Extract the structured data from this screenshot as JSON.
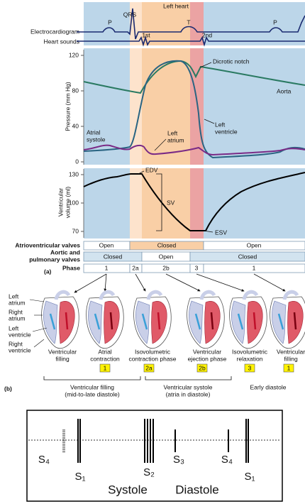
{
  "header": {
    "title": "Left heart"
  },
  "traces": {
    "ecg_label": "Electrocardiogram",
    "sounds_label": "Heart sounds",
    "ecg_waves": [
      "P",
      "QRS",
      "T",
      "P"
    ],
    "sounds": [
      "1st",
      "2nd"
    ]
  },
  "pressure": {
    "axis_label": "Pressure (mm Hg)",
    "ticks": [
      0,
      40,
      80,
      120
    ],
    "labels": {
      "dicrotic_notch": "Dicrotic notch",
      "aorta": "Aorta",
      "left_ventricle": [
        "Left",
        "ventricle"
      ],
      "atrial_systole": [
        "Atrial",
        "systole"
      ],
      "left_atrium": [
        "Left",
        "atrium"
      ]
    }
  },
  "volume": {
    "axis_label": [
      "Ventricular",
      "volume (ml)"
    ],
    "ticks": [
      70,
      100,
      130
    ],
    "labels": [
      "EDV",
      "SV",
      "ESV"
    ]
  },
  "table": {
    "rows": [
      {
        "label": [
          "Atrioventricular valves"
        ],
        "cells": [
          "Open",
          "Closed",
          "Open"
        ]
      },
      {
        "label": [
          "Aortic and",
          "pulmonary valves"
        ],
        "cells": [
          "Closed",
          "Open",
          "Closed"
        ]
      },
      {
        "label": [
          "Phase"
        ],
        "cells": [
          "1",
          "2a",
          "2b",
          "3",
          "1"
        ]
      }
    ],
    "panel_label": "(a)"
  },
  "hearts": {
    "parts": [
      [
        "Left",
        "atrium"
      ],
      [
        "Right",
        "atrium"
      ],
      [
        "Left",
        "ventricle"
      ],
      [
        "Right",
        "ventricle"
      ]
    ],
    "captions": [
      [
        "Ventricular",
        "filling"
      ],
      [
        "Atrial",
        "contraction"
      ],
      [
        "Isovolumetric",
        "contraction phase"
      ],
      [
        "Ventricular",
        "ejection phase"
      ],
      [
        "Isovolumetric",
        "relaxation"
      ],
      [
        "Ventricular",
        "filling"
      ]
    ],
    "phases": [
      "1",
      "2a",
      "2b",
      "3",
      "1"
    ],
    "groups": [
      [
        "Ventricular filling",
        "(mid-to-late diastole)"
      ],
      [
        "Ventricular systole",
        "(atria in diastole)"
      ],
      [
        "Early diastole"
      ]
    ],
    "panel_label": "(b)"
  },
  "sounds_box": {
    "labels": [
      "S₄",
      "S₁",
      "S₂",
      "S₃",
      "S₄",
      "S₁"
    ],
    "periods": [
      "Systole",
      "Diastole"
    ]
  }
}
